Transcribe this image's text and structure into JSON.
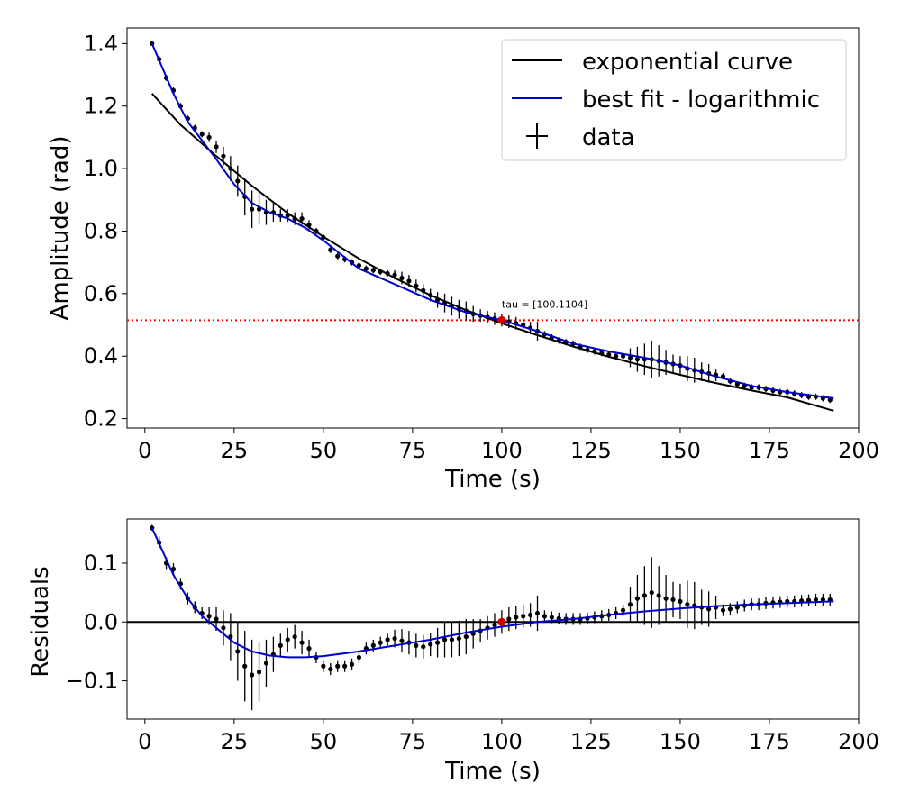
{
  "chart_data": [
    {
      "type": "scatter",
      "panel": "top",
      "xlabel": "Time (s)",
      "ylabel": "Amplitude (rad)",
      "xlim": [
        -5,
        200
      ],
      "ylim": [
        0.17,
        1.45
      ],
      "xticks": [
        0,
        25,
        50,
        75,
        100,
        125,
        150,
        175,
        200
      ],
      "yticks": [
        0.2,
        0.4,
        0.6,
        0.8,
        1.0,
        1.2,
        1.4
      ],
      "ytick_labels": [
        "0.2",
        "0.4",
        "0.6",
        "0.8",
        "1.0",
        "1.2",
        "1.4"
      ],
      "legend_position": "top-right",
      "legend": [
        "exponential curve",
        "best fit - logarithmic",
        "data"
      ],
      "annotation": {
        "text": "tau = [100.1104]",
        "x": 100,
        "y": 0.52
      },
      "hline": {
        "y": 0.515,
        "color": "#ff0000",
        "style": "dotted"
      },
      "exp_curve": {
        "name": "exponential curve",
        "color": "#000000",
        "x": [
          2,
          10,
          20,
          30,
          40,
          50,
          60,
          70,
          80,
          90,
          100,
          110,
          120,
          130,
          140,
          150,
          160,
          170,
          180,
          193
        ],
        "y": [
          1.24,
          1.14,
          1.04,
          0.945,
          0.858,
          0.782,
          0.712,
          0.65,
          0.595,
          0.547,
          0.505,
          0.467,
          0.431,
          0.398,
          0.368,
          0.34,
          0.314,
          0.29,
          0.268,
          0.225
        ]
      },
      "fit_curve": {
        "name": "best fit - logarithmic",
        "color": "#0000cc",
        "x": [
          2,
          5,
          8,
          12,
          16,
          20,
          25,
          30,
          35,
          40,
          45,
          50,
          60,
          70,
          80,
          90,
          100,
          110,
          120,
          130,
          140,
          150,
          160,
          170,
          180,
          193
        ],
        "y": [
          1.4,
          1.32,
          1.24,
          1.15,
          1.09,
          1.03,
          0.95,
          0.89,
          0.86,
          0.84,
          0.81,
          0.77,
          0.68,
          0.63,
          0.58,
          0.54,
          0.515,
          0.48,
          0.44,
          0.415,
          0.395,
          0.37,
          0.335,
          0.305,
          0.285,
          0.265
        ]
      },
      "data_points": {
        "name": "data",
        "color": "#000000",
        "x": [
          2,
          4,
          6,
          8,
          10,
          12,
          14,
          16,
          18,
          20,
          22,
          24,
          26,
          28,
          30,
          32,
          34,
          36,
          38,
          40,
          42,
          44,
          46,
          48,
          50,
          52,
          54,
          56,
          58,
          60,
          62,
          64,
          66,
          68,
          70,
          72,
          74,
          76,
          78,
          80,
          82,
          84,
          86,
          88,
          90,
          92,
          94,
          96,
          98,
          100,
          102,
          104,
          106,
          108,
          110,
          112,
          114,
          116,
          118,
          120,
          122,
          124,
          126,
          128,
          130,
          132,
          134,
          136,
          138,
          140,
          142,
          144,
          146,
          148,
          150,
          152,
          154,
          156,
          158,
          160,
          162,
          164,
          166,
          168,
          170,
          172,
          174,
          176,
          178,
          180,
          182,
          184,
          186,
          188,
          190,
          192
        ],
        "y": [
          1.4,
          1.35,
          1.29,
          1.25,
          1.2,
          1.16,
          1.13,
          1.11,
          1.1,
          1.07,
          1.04,
          1.0,
          0.96,
          0.91,
          0.87,
          0.87,
          0.86,
          0.86,
          0.85,
          0.85,
          0.84,
          0.84,
          0.82,
          0.8,
          0.78,
          0.74,
          0.72,
          0.71,
          0.7,
          0.69,
          0.68,
          0.675,
          0.67,
          0.665,
          0.66,
          0.65,
          0.64,
          0.625,
          0.61,
          0.595,
          0.58,
          0.57,
          0.56,
          0.55,
          0.545,
          0.535,
          0.53,
          0.525,
          0.52,
          0.515,
          0.51,
          0.505,
          0.5,
          0.49,
          0.48,
          0.47,
          0.46,
          0.45,
          0.445,
          0.44,
          0.43,
          0.42,
          0.415,
          0.41,
          0.405,
          0.4,
          0.4,
          0.395,
          0.39,
          0.39,
          0.39,
          0.385,
          0.38,
          0.375,
          0.37,
          0.36,
          0.355,
          0.35,
          0.345,
          0.34,
          0.335,
          0.32,
          0.31,
          0.305,
          0.3,
          0.3,
          0.295,
          0.29,
          0.285,
          0.285,
          0.28,
          0.275,
          0.27,
          0.27,
          0.265,
          0.26
        ],
        "yerr": [
          0.005,
          0.01,
          0.01,
          0.01,
          0.01,
          0.01,
          0.01,
          0.01,
          0.015,
          0.02,
          0.03,
          0.04,
          0.05,
          0.06,
          0.06,
          0.05,
          0.04,
          0.03,
          0.02,
          0.02,
          0.02,
          0.02,
          0.015,
          0.01,
          0.01,
          0.01,
          0.01,
          0.01,
          0.01,
          0.01,
          0.01,
          0.01,
          0.01,
          0.01,
          0.015,
          0.02,
          0.02,
          0.02,
          0.02,
          0.02,
          0.025,
          0.03,
          0.03,
          0.03,
          0.03,
          0.025,
          0.02,
          0.02,
          0.02,
          0.02,
          0.02,
          0.02,
          0.02,
          0.02,
          0.03,
          0.01,
          0.01,
          0.01,
          0.01,
          0.01,
          0.01,
          0.01,
          0.01,
          0.01,
          0.01,
          0.01,
          0.01,
          0.03,
          0.04,
          0.05,
          0.06,
          0.05,
          0.04,
          0.03,
          0.03,
          0.04,
          0.04,
          0.03,
          0.03,
          0.02,
          0.01,
          0.01,
          0.01,
          0.01,
          0.01,
          0.01,
          0.01,
          0.01,
          0.01,
          0.01,
          0.01,
          0.01,
          0.01,
          0.01,
          0.01,
          0.01
        ]
      },
      "highlight_point": {
        "x": 100,
        "y": 0.515,
        "color": "#cc0000"
      }
    },
    {
      "type": "scatter",
      "panel": "bottom",
      "xlabel": "Time (s)",
      "ylabel": "Residuals",
      "xlim": [
        -5,
        200
      ],
      "ylim": [
        -0.165,
        0.175
      ],
      "xticks": [
        0,
        25,
        50,
        75,
        100,
        125,
        150,
        175,
        200
      ],
      "yticks": [
        -0.1,
        0.0,
        0.1
      ],
      "ytick_labels": [
        "−0.1",
        "0.0",
        "0.1"
      ],
      "hline": {
        "y": 0,
        "color": "#000000",
        "style": "solid"
      },
      "fit_curve": {
        "color": "#0000cc",
        "x": [
          2,
          5,
          8,
          12,
          16,
          20,
          25,
          30,
          35,
          40,
          45,
          50,
          60,
          70,
          80,
          90,
          100,
          110,
          120,
          130,
          140,
          150,
          160,
          170,
          180,
          193
        ],
        "y": [
          0.16,
          0.12,
          0.08,
          0.04,
          0.01,
          -0.01,
          -0.035,
          -0.05,
          -0.057,
          -0.06,
          -0.06,
          -0.058,
          -0.05,
          -0.04,
          -0.03,
          -0.018,
          -0.008,
          0.0,
          0.005,
          0.012,
          0.018,
          0.023,
          0.027,
          0.03,
          0.032,
          0.035
        ]
      },
      "data_points": {
        "color": "#000000",
        "x": [
          2,
          4,
          6,
          8,
          10,
          12,
          14,
          16,
          18,
          20,
          22,
          24,
          26,
          28,
          30,
          32,
          34,
          36,
          38,
          40,
          42,
          44,
          46,
          48,
          50,
          52,
          54,
          56,
          58,
          60,
          62,
          64,
          66,
          68,
          70,
          72,
          74,
          76,
          78,
          80,
          82,
          84,
          86,
          88,
          90,
          92,
          94,
          96,
          98,
          100,
          102,
          104,
          106,
          108,
          110,
          112,
          114,
          116,
          118,
          120,
          122,
          124,
          126,
          128,
          130,
          132,
          134,
          136,
          138,
          140,
          142,
          144,
          146,
          148,
          150,
          152,
          154,
          156,
          158,
          160,
          162,
          164,
          166,
          168,
          170,
          172,
          174,
          176,
          178,
          180,
          182,
          184,
          186,
          188,
          190,
          192
        ],
        "y": [
          0.16,
          0.135,
          0.1,
          0.09,
          0.065,
          0.04,
          0.025,
          0.015,
          0.01,
          0.005,
          -0.01,
          -0.025,
          -0.05,
          -0.075,
          -0.09,
          -0.085,
          -0.07,
          -0.055,
          -0.04,
          -0.03,
          -0.025,
          -0.035,
          -0.045,
          -0.06,
          -0.075,
          -0.08,
          -0.075,
          -0.075,
          -0.072,
          -0.06,
          -0.045,
          -0.04,
          -0.035,
          -0.03,
          -0.028,
          -0.032,
          -0.035,
          -0.04,
          -0.042,
          -0.038,
          -0.035,
          -0.03,
          -0.03,
          -0.028,
          -0.025,
          -0.02,
          -0.015,
          -0.01,
          -0.005,
          0.0,
          0.005,
          0.008,
          0.01,
          0.012,
          0.015,
          0.01,
          0.008,
          0.006,
          0.005,
          0.005,
          0.005,
          0.006,
          0.008,
          0.01,
          0.012,
          0.015,
          0.02,
          0.03,
          0.04,
          0.045,
          0.05,
          0.045,
          0.04,
          0.038,
          0.035,
          0.03,
          0.028,
          0.025,
          0.022,
          0.025,
          0.02,
          0.022,
          0.025,
          0.028,
          0.03,
          0.03,
          0.032,
          0.033,
          0.034,
          0.035,
          0.035,
          0.036,
          0.037,
          0.038,
          0.038,
          0.038
        ],
        "yerr": [
          0.005,
          0.01,
          0.01,
          0.01,
          0.01,
          0.01,
          0.01,
          0.01,
          0.015,
          0.02,
          0.03,
          0.04,
          0.05,
          0.06,
          0.06,
          0.05,
          0.04,
          0.03,
          0.02,
          0.02,
          0.02,
          0.02,
          0.015,
          0.01,
          0.01,
          0.01,
          0.01,
          0.01,
          0.01,
          0.01,
          0.01,
          0.01,
          0.01,
          0.01,
          0.015,
          0.02,
          0.02,
          0.02,
          0.02,
          0.02,
          0.025,
          0.03,
          0.03,
          0.03,
          0.03,
          0.025,
          0.02,
          0.02,
          0.02,
          0.02,
          0.02,
          0.02,
          0.02,
          0.02,
          0.03,
          0.01,
          0.01,
          0.01,
          0.01,
          0.01,
          0.01,
          0.01,
          0.01,
          0.01,
          0.01,
          0.01,
          0.01,
          0.03,
          0.04,
          0.05,
          0.06,
          0.05,
          0.04,
          0.03,
          0.03,
          0.04,
          0.04,
          0.03,
          0.03,
          0.02,
          0.01,
          0.01,
          0.01,
          0.01,
          0.01,
          0.01,
          0.01,
          0.01,
          0.01,
          0.01,
          0.01,
          0.01,
          0.01,
          0.01,
          0.01,
          0.01
        ]
      },
      "highlight_point": {
        "x": 100,
        "y": 0.0,
        "color": "#cc0000"
      }
    }
  ]
}
